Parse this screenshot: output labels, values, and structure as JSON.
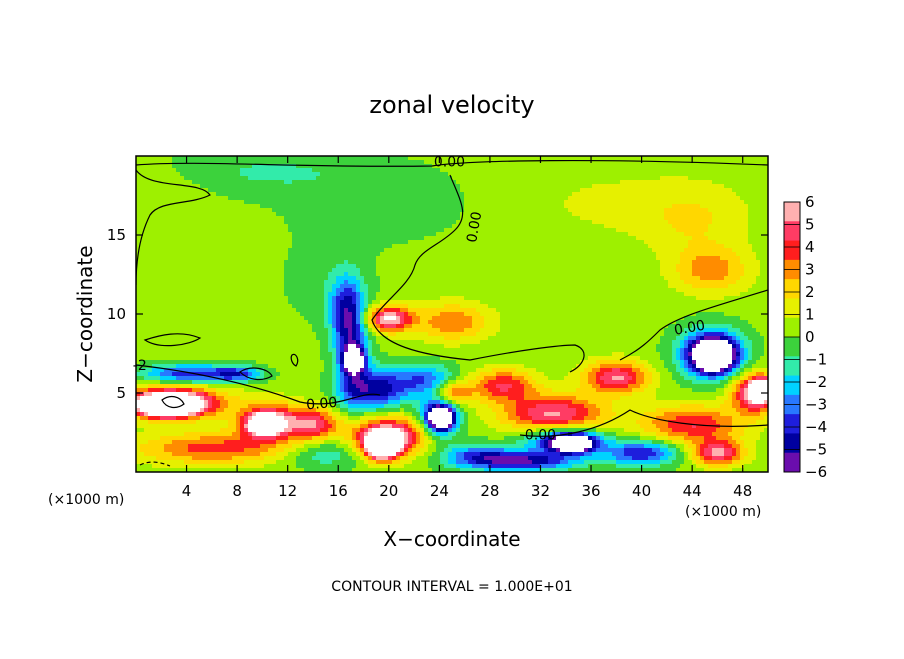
{
  "chart_data": {
    "type": "heatmap",
    "title": "zonal velocity",
    "xlabel": "X−coordinate",
    "ylabel": "Z−coordinate",
    "x_unit": "(×1000 m)",
    "y_unit": "(×1000 m)",
    "xlim": [
      0,
      50
    ],
    "ylim": [
      0,
      20
    ],
    "x_ticks": [
      4,
      8,
      12,
      16,
      20,
      24,
      28,
      32,
      36,
      40,
      44,
      48
    ],
    "x_tick_labels": [
      "4",
      "8",
      "12",
      "16",
      "20",
      "24",
      "28",
      "32",
      "36",
      "40",
      "44",
      "48"
    ],
    "y_ticks": [
      5,
      10,
      15
    ],
    "y_tick_labels": [
      "5",
      "10",
      "15"
    ],
    "colorbar": {
      "min": -6,
      "max": 6,
      "ticks": [
        6,
        5,
        4,
        3,
        2,
        1,
        0,
        -1,
        -2,
        -3,
        -4,
        -5,
        -6
      ],
      "tick_labels": [
        "6",
        "5",
        "4",
        "3",
        "2",
        "1",
        "0",
        "−1",
        "−2",
        "−3",
        "−4",
        "−5",
        "−6"
      ],
      "colors": [
        "#ffb0b0",
        "#ff3c64",
        "#ff1e1e",
        "#ff8c00",
        "#ffd700",
        "#e6f000",
        "#9ef000",
        "#3cd23c",
        "#32ebaa",
        "#00d2ff",
        "#2878ff",
        "#1e1edc",
        "#0000a0",
        "#6a0dad"
      ]
    },
    "grid": false,
    "contour_interval": "CONTOUR INTERVAL = 1.000E+01",
    "contour_labels": [
      {
        "text": "0.00",
        "x": 24.8,
        "z": 19.6,
        "rotation": 0
      },
      {
        "text": "0.00",
        "x": 26.8,
        "z": 15.5,
        "rotation": -80
      },
      {
        "text": "0.00",
        "x": 43.8,
        "z": 9.1,
        "rotation": -10
      },
      {
        "text": "0.00",
        "x": 14.7,
        "z": 4.3,
        "rotation": -5
      },
      {
        "text": "0.00",
        "x": 32.0,
        "z": 2.3,
        "rotation": 0
      },
      {
        "text": "-2",
        "x": 0.3,
        "z": 6.7,
        "rotation": 0
      }
    ],
    "blobs": [
      {
        "x": 2,
        "z": 18,
        "rx": 4,
        "rz": 1.5,
        "v": 0.5
      },
      {
        "x": 10,
        "z": 19,
        "rx": 8,
        "rz": 1.5,
        "v": -1.2
      },
      {
        "x": 20,
        "z": 17,
        "rx": 8,
        "rz": 2.5,
        "v": -0.8
      },
      {
        "x": 15,
        "z": 12,
        "rx": 4,
        "rz": 3,
        "v": -0.6
      },
      {
        "x": 38,
        "z": 17,
        "rx": 10,
        "rz": 2.5,
        "v": 0.7
      },
      {
        "x": 45.5,
        "z": 12.8,
        "rx": 3,
        "rz": 1.5,
        "v": 2.8
      },
      {
        "x": 44,
        "z": 16,
        "rx": 4,
        "rz": 2,
        "v": 1.2
      },
      {
        "x": 20,
        "z": 9.7,
        "rx": 1.8,
        "rz": 0.8,
        "v": 5.8
      },
      {
        "x": 25,
        "z": 9.5,
        "rx": 3,
        "rz": 1.2,
        "v": 3
      },
      {
        "x": 17,
        "z": 8,
        "rx": 1.3,
        "rz": 3.2,
        "v": -4.5
      },
      {
        "x": 16.5,
        "z": 10.5,
        "rx": 1.4,
        "rz": 2,
        "v": -2.8
      },
      {
        "x": 17.3,
        "z": 7.1,
        "rx": 0.8,
        "rz": 0.8,
        "v": -6
      },
      {
        "x": 19,
        "z": 5.2,
        "rx": 2.5,
        "rz": 1.3,
        "v": -5
      },
      {
        "x": 23,
        "z": 5.8,
        "rx": 2.5,
        "rz": 1,
        "v": -3.5
      },
      {
        "x": 4,
        "z": 6.2,
        "rx": 3.5,
        "rz": 0.6,
        "v": -4.5
      },
      {
        "x": 8,
        "z": 6.2,
        "rx": 2,
        "rz": 0.5,
        "v": -3.5
      },
      {
        "x": 3,
        "z": 4.5,
        "rx": 4,
        "rz": 1,
        "v": 5
      },
      {
        "x": 2.5,
        "z": 4.2,
        "rx": 2.6,
        "rz": 0.7,
        "v": 9
      },
      {
        "x": 10.5,
        "z": 3.2,
        "rx": 2.5,
        "rz": 1.2,
        "v": 5
      },
      {
        "x": 10.2,
        "z": 3.0,
        "rx": 1.2,
        "rz": 0.6,
        "v": 8
      },
      {
        "x": 14,
        "z": 3.0,
        "rx": 2,
        "rz": 1,
        "v": 4.5
      },
      {
        "x": 20,
        "z": 2.3,
        "rx": 3,
        "rz": 1.2,
        "v": 6
      },
      {
        "x": 19.5,
        "z": 1.6,
        "rx": 1.3,
        "rz": 0.8,
        "v": 9
      },
      {
        "x": 6,
        "z": 1.5,
        "rx": 6,
        "rz": 1,
        "v": 3.5
      },
      {
        "x": 15,
        "z": 1.2,
        "rx": 3,
        "rz": 1,
        "v": -2
      },
      {
        "x": 24,
        "z": 3.5,
        "rx": 1.5,
        "rz": 1.2,
        "v": -6.5
      },
      {
        "x": 24.2,
        "z": 3.4,
        "rx": 0.8,
        "rz": 0.6,
        "v": -9
      },
      {
        "x": 33,
        "z": 3.7,
        "rx": 4,
        "rz": 1.2,
        "v": 5
      },
      {
        "x": 38,
        "z": 6,
        "rx": 2.5,
        "rz": 1,
        "v": 5
      },
      {
        "x": 29,
        "z": 5.5,
        "rx": 2.5,
        "rz": 1,
        "v": 4
      },
      {
        "x": 34,
        "z": 2,
        "rx": 3,
        "rz": 0.8,
        "v": -5.5
      },
      {
        "x": 34.5,
        "z": 1.8,
        "rx": 1.5,
        "rz": 0.5,
        "v": -8
      },
      {
        "x": 31,
        "z": 0.7,
        "rx": 4,
        "rz": 0.6,
        "v": -5
      },
      {
        "x": 45.5,
        "z": 7.5,
        "rx": 2.6,
        "rz": 1.6,
        "v": -5
      },
      {
        "x": 45.7,
        "z": 7.4,
        "rx": 1.6,
        "rz": 1.0,
        "v": -9
      },
      {
        "x": 44,
        "z": 3,
        "rx": 4,
        "rz": 1.2,
        "v": 4
      },
      {
        "x": 46,
        "z": 1.2,
        "rx": 2,
        "rz": 0.8,
        "v": 5
      },
      {
        "x": 40,
        "z": 1.2,
        "rx": 3,
        "rz": 0.8,
        "v": -4.5
      },
      {
        "x": 49,
        "z": 5,
        "rx": 1.8,
        "rz": 1.2,
        "v": 6
      },
      {
        "x": 49.5,
        "z": 5.2,
        "rx": 0.8,
        "rz": 0.6,
        "v": 9
      },
      {
        "x": 27,
        "z": 1,
        "rx": 3,
        "rz": 0.8,
        "v": -3.5
      },
      {
        "x": 25,
        "z": 5,
        "rx": 1.5,
        "rz": 0.8,
        "v": 4
      }
    ]
  }
}
